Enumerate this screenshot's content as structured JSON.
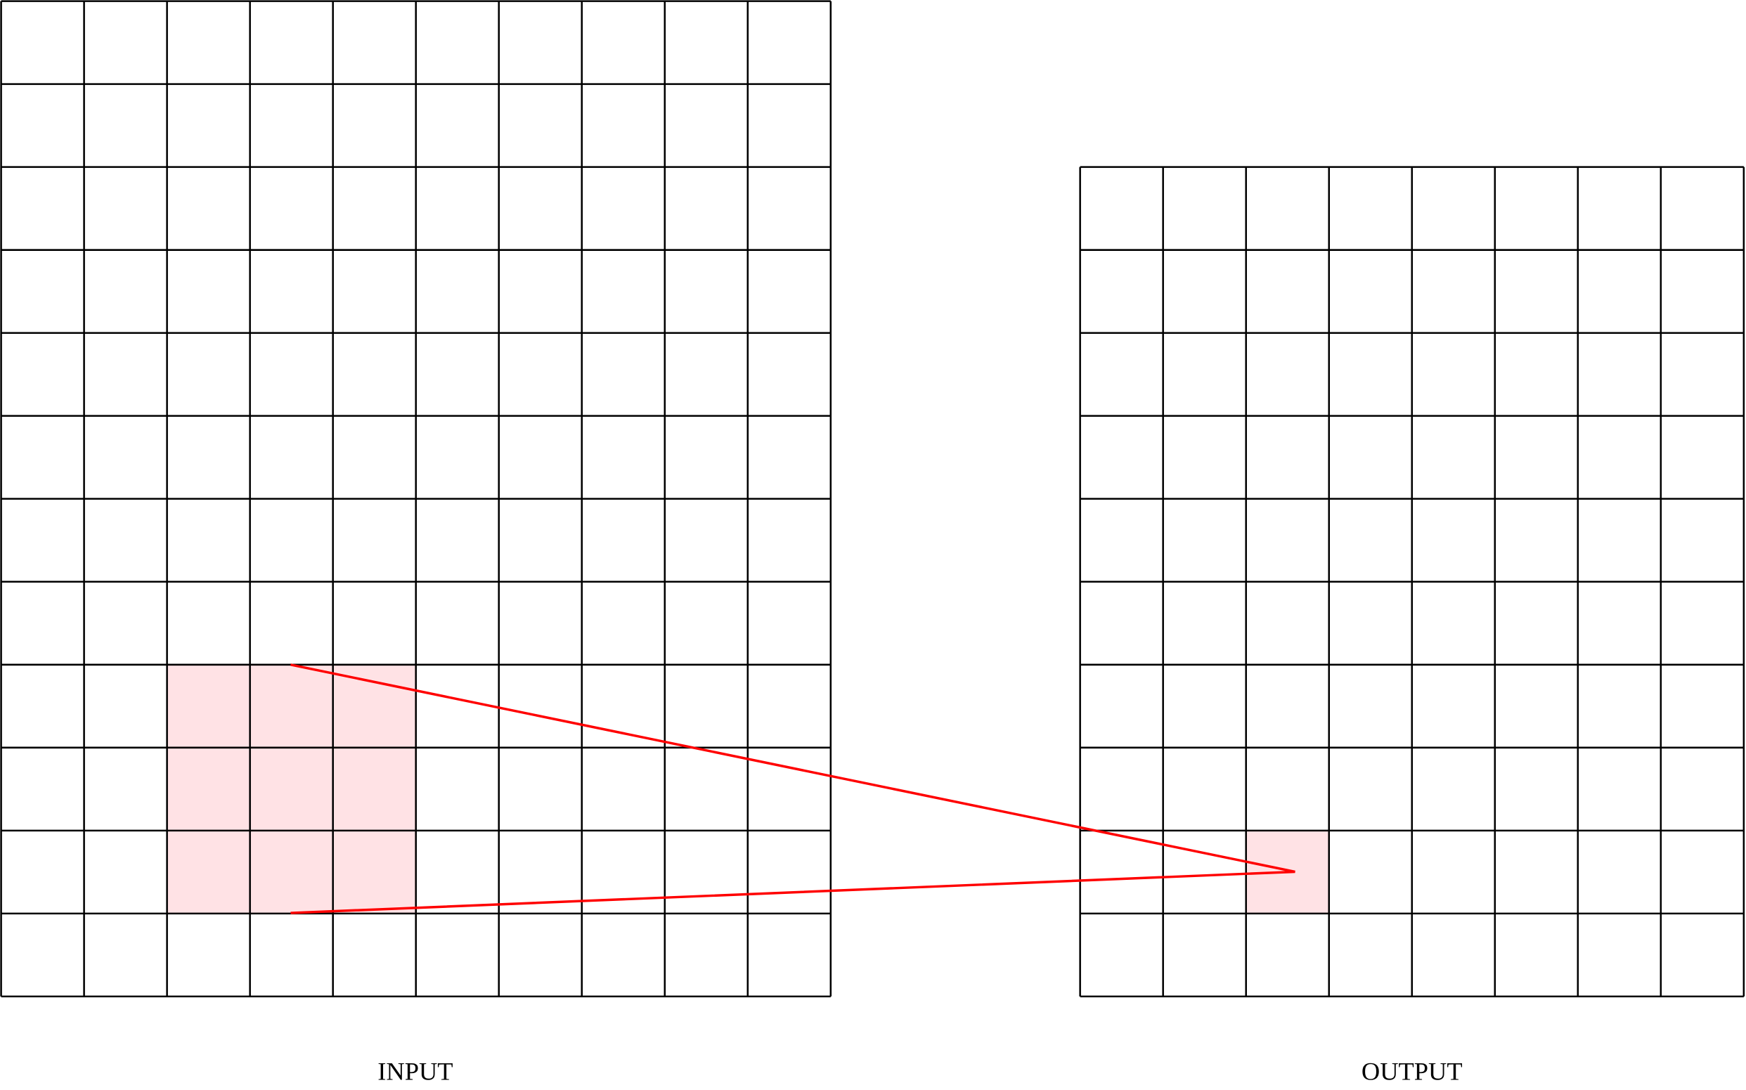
{
  "labels": {
    "input": "INPUT",
    "output": "OUTPUT"
  }
}
